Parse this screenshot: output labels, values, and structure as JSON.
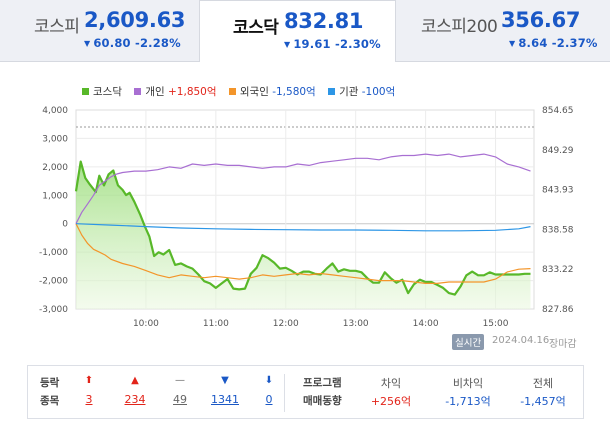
{
  "tabs": [
    {
      "name": "코스피",
      "value": "2,609.63",
      "change": "60.80",
      "rate": "-2.28%",
      "active": false
    },
    {
      "name": "코스닥",
      "value": "832.81",
      "change": "19.61",
      "rate": "-2.30%",
      "active": true
    },
    {
      "name": "코스피200",
      "value": "356.67",
      "change": "8.64",
      "rate": "-2.37%",
      "active": false
    }
  ],
  "legend": [
    {
      "label": "코스닥",
      "value": "",
      "color": "#58b829"
    },
    {
      "label": "개인",
      "value": "+1,850억",
      "value_color": "#e2241a",
      "color": "#a86fd2"
    },
    {
      "label": "외국인",
      "value": "-1,580억",
      "value_color": "#1a58c6",
      "color": "#f3952a"
    },
    {
      "label": "기관",
      "value": "-100억",
      "value_color": "#1a58c6",
      "color": "#2d96e6"
    }
  ],
  "chart_data": {
    "type": "line",
    "x_tick_labels": [
      "10:00",
      "11:00",
      "12:00",
      "13:00",
      "14:00",
      "15:00"
    ],
    "y_left_ticks": [
      "4,000",
      "3,000",
      "2,000",
      "1,000",
      "0",
      "-1,000",
      "-2,000",
      "-3,000"
    ],
    "y_right_ticks": [
      "854.65",
      "849.29",
      "843.93",
      "838.58",
      "833.22",
      "827.86"
    ],
    "ylim_left": [
      -3000,
      4000
    ],
    "ylim_right": [
      827.86,
      854.65
    ],
    "x_range_minutes": [
      540,
      933
    ],
    "area_fill": true,
    "series": [
      {
        "name": "코스닥",
        "axis": "right",
        "color": "#58b829",
        "x": [
          "09:00",
          "09:04",
          "09:08",
          "09:12",
          "09:17",
          "09:20",
          "09:24",
          "09:28",
          "09:32",
          "09:36",
          "09:40",
          "09:43",
          "09:46",
          "09:50",
          "09:55",
          "09:59",
          "10:03",
          "10:07",
          "10:11",
          "10:15",
          "10:20",
          "10:25",
          "10:30",
          "10:35",
          "10:40",
          "10:45",
          "10:50",
          "10:55",
          "11:00",
          "11:05",
          "11:10",
          "11:15",
          "11:20",
          "11:25",
          "11:30",
          "11:35",
          "11:40",
          "11:45",
          "11:50",
          "11:55",
          "12:00",
          "12:05",
          "12:10",
          "12:15",
          "12:20",
          "12:25",
          "12:30",
          "12:35",
          "12:40",
          "12:45",
          "12:50",
          "12:55",
          "13:00",
          "13:05",
          "13:10",
          "13:15",
          "13:20",
          "13:25",
          "13:30",
          "13:35",
          "13:40",
          "13:45",
          "13:50",
          "13:55",
          "14:00",
          "14:05",
          "14:10",
          "14:15",
          "14:20",
          "14:25",
          "14:30",
          "14:35",
          "14:40",
          "14:45",
          "14:50",
          "14:55",
          "15:00",
          "15:05",
          "15:10",
          "15:15",
          "15:20",
          "15:25",
          "15:30"
        ],
        "values": [
          843.7,
          847.7,
          845.5,
          844.6,
          843.6,
          845.8,
          844.5,
          846.0,
          846.5,
          844.5,
          843.9,
          843.2,
          843.5,
          842.3,
          840.6,
          839.0,
          837.6,
          835.0,
          835.5,
          835.2,
          835.8,
          833.8,
          834.0,
          833.6,
          833.3,
          832.5,
          831.6,
          831.3,
          830.7,
          831.3,
          831.9,
          830.6,
          830.5,
          830.6,
          832.6,
          833.4,
          835.1,
          834.7,
          834.1,
          833.3,
          833.4,
          833.0,
          832.5,
          832.9,
          832.9,
          832.6,
          832.5,
          833.3,
          834.0,
          832.9,
          833.2,
          833.0,
          833.0,
          832.8,
          832.0,
          831.4,
          831.4,
          832.8,
          832.0,
          831.4,
          831.8,
          830.0,
          831.2,
          831.8,
          831.5,
          831.5,
          831.1,
          830.7,
          830.0,
          829.8,
          830.9,
          832.4,
          832.9,
          832.4,
          832.4,
          832.8,
          832.5,
          832.5,
          832.5,
          832.5,
          832.5,
          832.6,
          832.6
        ],
        "note": "values read approximately from chart"
      },
      {
        "name": "개인",
        "axis": "left",
        "color": "#a86fd2",
        "x": [
          "09:00",
          "09:05",
          "09:10",
          "09:15",
          "09:20",
          "09:25",
          "09:30",
          "09:35",
          "09:40",
          "09:50",
          "10:00",
          "10:10",
          "10:20",
          "10:30",
          "10:40",
          "10:50",
          "11:00",
          "11:10",
          "11:20",
          "11:30",
          "11:40",
          "11:50",
          "12:00",
          "12:10",
          "12:20",
          "12:30",
          "12:40",
          "12:50",
          "13:00",
          "13:10",
          "13:20",
          "13:30",
          "13:40",
          "13:50",
          "14:00",
          "14:10",
          "14:20",
          "14:30",
          "14:40",
          "14:50",
          "15:00",
          "15:10",
          "15:20",
          "15:30"
        ],
        "values": [
          0,
          400,
          700,
          1000,
          1350,
          1500,
          1650,
          1750,
          1800,
          1850,
          1850,
          1900,
          2000,
          1950,
          2100,
          2050,
          2100,
          2050,
          2050,
          2000,
          1950,
          2000,
          2000,
          2100,
          2050,
          2150,
          2200,
          2250,
          2300,
          2300,
          2250,
          2350,
          2400,
          2400,
          2450,
          2400,
          2450,
          2350,
          2400,
          2450,
          2350,
          2100,
          2000,
          1850
        ]
      },
      {
        "name": "외국인",
        "axis": "left",
        "color": "#f3952a",
        "x": [
          "09:00",
          "09:05",
          "09:10",
          "09:15",
          "09:20",
          "09:25",
          "09:30",
          "09:40",
          "09:50",
          "10:00",
          "10:10",
          "10:20",
          "10:30",
          "10:40",
          "10:50",
          "11:00",
          "11:10",
          "11:20",
          "11:30",
          "11:40",
          "11:50",
          "12:00",
          "12:10",
          "12:20",
          "12:30",
          "12:40",
          "12:50",
          "13:00",
          "13:10",
          "13:20",
          "13:30",
          "13:40",
          "13:50",
          "14:00",
          "14:10",
          "14:20",
          "14:30",
          "14:40",
          "14:50",
          "15:00",
          "15:10",
          "15:20",
          "15:30"
        ],
        "values": [
          0,
          -400,
          -700,
          -900,
          -1000,
          -1100,
          -1250,
          -1400,
          -1500,
          -1650,
          -1800,
          -1900,
          -1800,
          -1850,
          -1900,
          -1850,
          -1900,
          -1950,
          -1900,
          -1800,
          -1850,
          -1800,
          -1750,
          -1800,
          -1750,
          -1800,
          -1850,
          -1900,
          -1950,
          -2000,
          -2000,
          -2000,
          -2050,
          -2100,
          -2100,
          -2050,
          -2050,
          -2050,
          -2050,
          -1950,
          -1700,
          -1600,
          -1580
        ]
      },
      {
        "name": "기관",
        "axis": "left",
        "color": "#2d96e6",
        "x": [
          "09:00",
          "09:30",
          "10:00",
          "10:30",
          "11:00",
          "11:30",
          "12:00",
          "12:30",
          "13:00",
          "13:30",
          "14:00",
          "14:30",
          "15:00",
          "15:20",
          "15:30"
        ],
        "values": [
          0,
          -50,
          -100,
          -150,
          -180,
          -200,
          -210,
          -220,
          -220,
          -230,
          -250,
          -250,
          -230,
          -180,
          -100
        ]
      }
    ]
  },
  "status": {
    "badge": "실시간",
    "date": "2024.04.16",
    "label": "장마감"
  },
  "advance_decline": {
    "label_line1": "등락",
    "label_line2": "종목",
    "items": [
      {
        "icon": "upper-limit-icon",
        "glyph": "⬆",
        "count": "3",
        "color": "#e2241a"
      },
      {
        "icon": "rise-icon",
        "glyph": "▲",
        "count": "234",
        "color": "#e2241a"
      },
      {
        "icon": "unchanged-icon",
        "glyph": "—",
        "count": "49",
        "color": "#666666"
      },
      {
        "icon": "fall-icon",
        "glyph": "▼",
        "count": "1341",
        "color": "#1a58c6"
      },
      {
        "icon": "lower-limit-icon",
        "glyph": "⬇",
        "count": "0",
        "color": "#1a58c6"
      }
    ]
  },
  "program_trading": {
    "label_line1": "프로그램",
    "label_line2": "매매동향",
    "items": [
      {
        "head": "차익",
        "value": "+256억",
        "color": "#e2241a"
      },
      {
        "head": "비차익",
        "value": "-1,713억",
        "color": "#1a58c6"
      },
      {
        "head": "전체",
        "value": "-1,457억",
        "color": "#1a58c6"
      }
    ]
  }
}
